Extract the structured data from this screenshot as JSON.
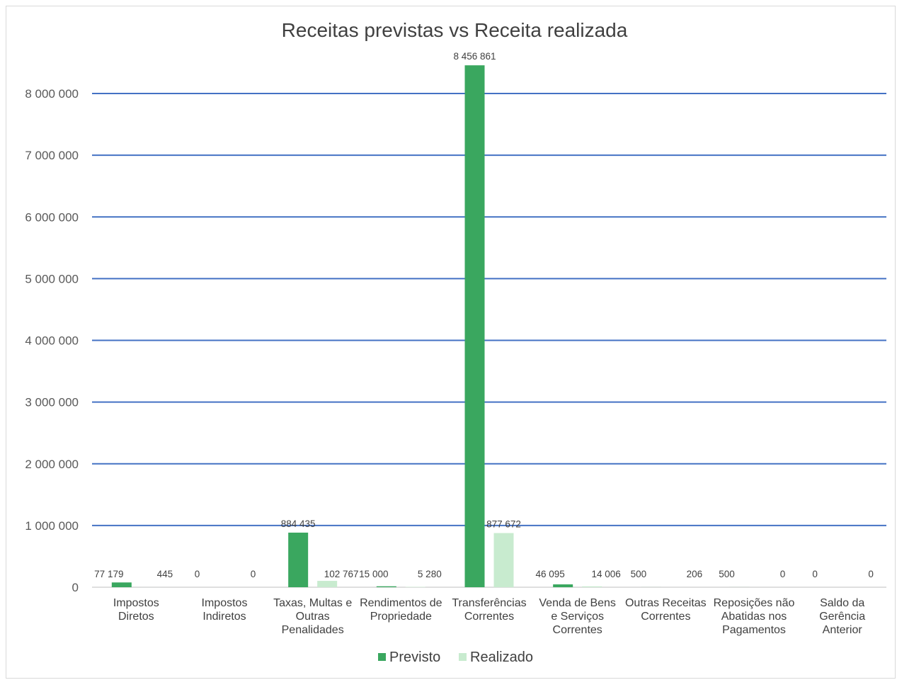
{
  "chart_data": {
    "type": "bar",
    "title": "Receitas previstas vs Receita realizada",
    "xlabel": "",
    "ylabel": "",
    "ylim": [
      0,
      8000000
    ],
    "yticks": [
      "0",
      "1 000 000",
      "2 000 000",
      "3 000 000",
      "4 000 000",
      "5 000 000",
      "6 000 000",
      "7 000 000",
      "8 000 000"
    ],
    "grid": true,
    "legend_position": "bottom",
    "categories": [
      [
        "Impostos",
        "Diretos"
      ],
      [
        "Impostos",
        "Indiretos"
      ],
      [
        "Taxas, Multas e",
        "Outras",
        "Penalidades"
      ],
      [
        "Rendimentos de",
        "Propriedade"
      ],
      [
        "Transferências",
        "Correntes"
      ],
      [
        "Venda de Bens",
        "e Serviços",
        "Correntes"
      ],
      [
        "Outras Receitas",
        "Correntes"
      ],
      [
        "Reposições não",
        "Abatidas nos",
        "Pagamentos"
      ],
      [
        "Saldo da",
        "Gerência",
        "Anterior"
      ]
    ],
    "series": [
      {
        "name": "Previsto",
        "color": "#3aa75f",
        "values": [
          77179,
          0,
          884435,
          15000,
          8456861,
          46095,
          500,
          500,
          0
        ],
        "labels": [
          "77 179",
          "0",
          "884 435",
          "15 000",
          "8 456 861",
          "46 095",
          "500",
          "500",
          "0"
        ]
      },
      {
        "name": "Realizado",
        "color": "#c8ebcf",
        "values": [
          445,
          0,
          102767,
          5280,
          877672,
          14006,
          206,
          0,
          0
        ],
        "labels": [
          "445",
          "0",
          "102 767",
          "5 280",
          "877 672",
          "14 006",
          "206",
          "0",
          "0"
        ]
      }
    ]
  }
}
